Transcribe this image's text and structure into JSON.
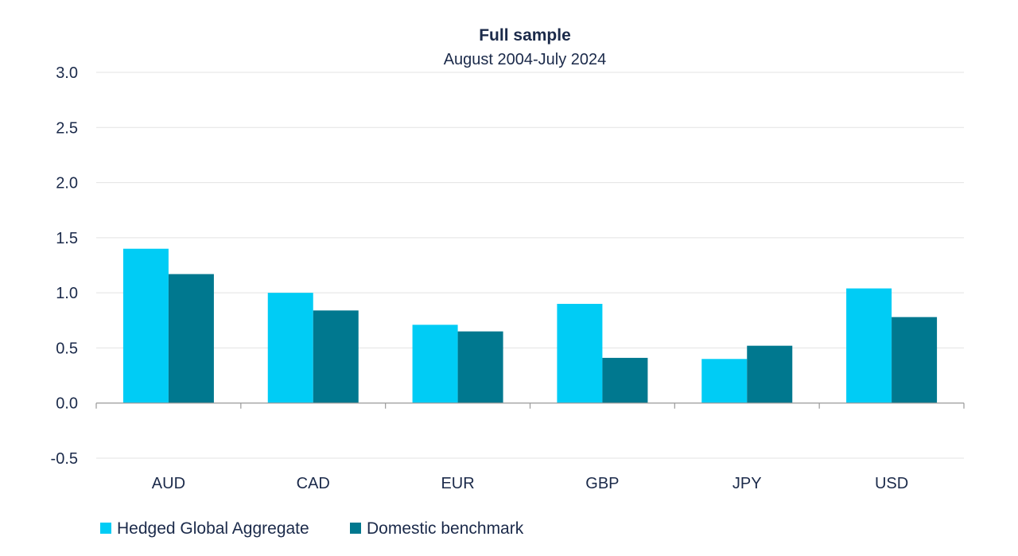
{
  "chart_data": {
    "type": "bar",
    "title": "Full sample",
    "subtitle": "August 2004-July 2024",
    "categories": [
      "AUD",
      "CAD",
      "EUR",
      "GBP",
      "JPY",
      "USD"
    ],
    "series": [
      {
        "name": "Hedged Global Aggregate",
        "color": "#00ccf5",
        "values": [
          1.4,
          1.0,
          0.71,
          0.9,
          0.4,
          1.04
        ]
      },
      {
        "name": "Domestic benchmark",
        "color": "#00788f",
        "values": [
          1.17,
          0.84,
          0.65,
          0.41,
          0.52,
          0.78
        ]
      }
    ],
    "ylim": [
      -0.5,
      3.0
    ],
    "yticks": [
      "-0.5",
      "0.0",
      "0.5",
      "1.0",
      "1.5",
      "2.0",
      "2.5",
      "3.0"
    ],
    "xlabel": "",
    "ylabel": "",
    "grid": true,
    "legend_position": "bottom-left"
  }
}
